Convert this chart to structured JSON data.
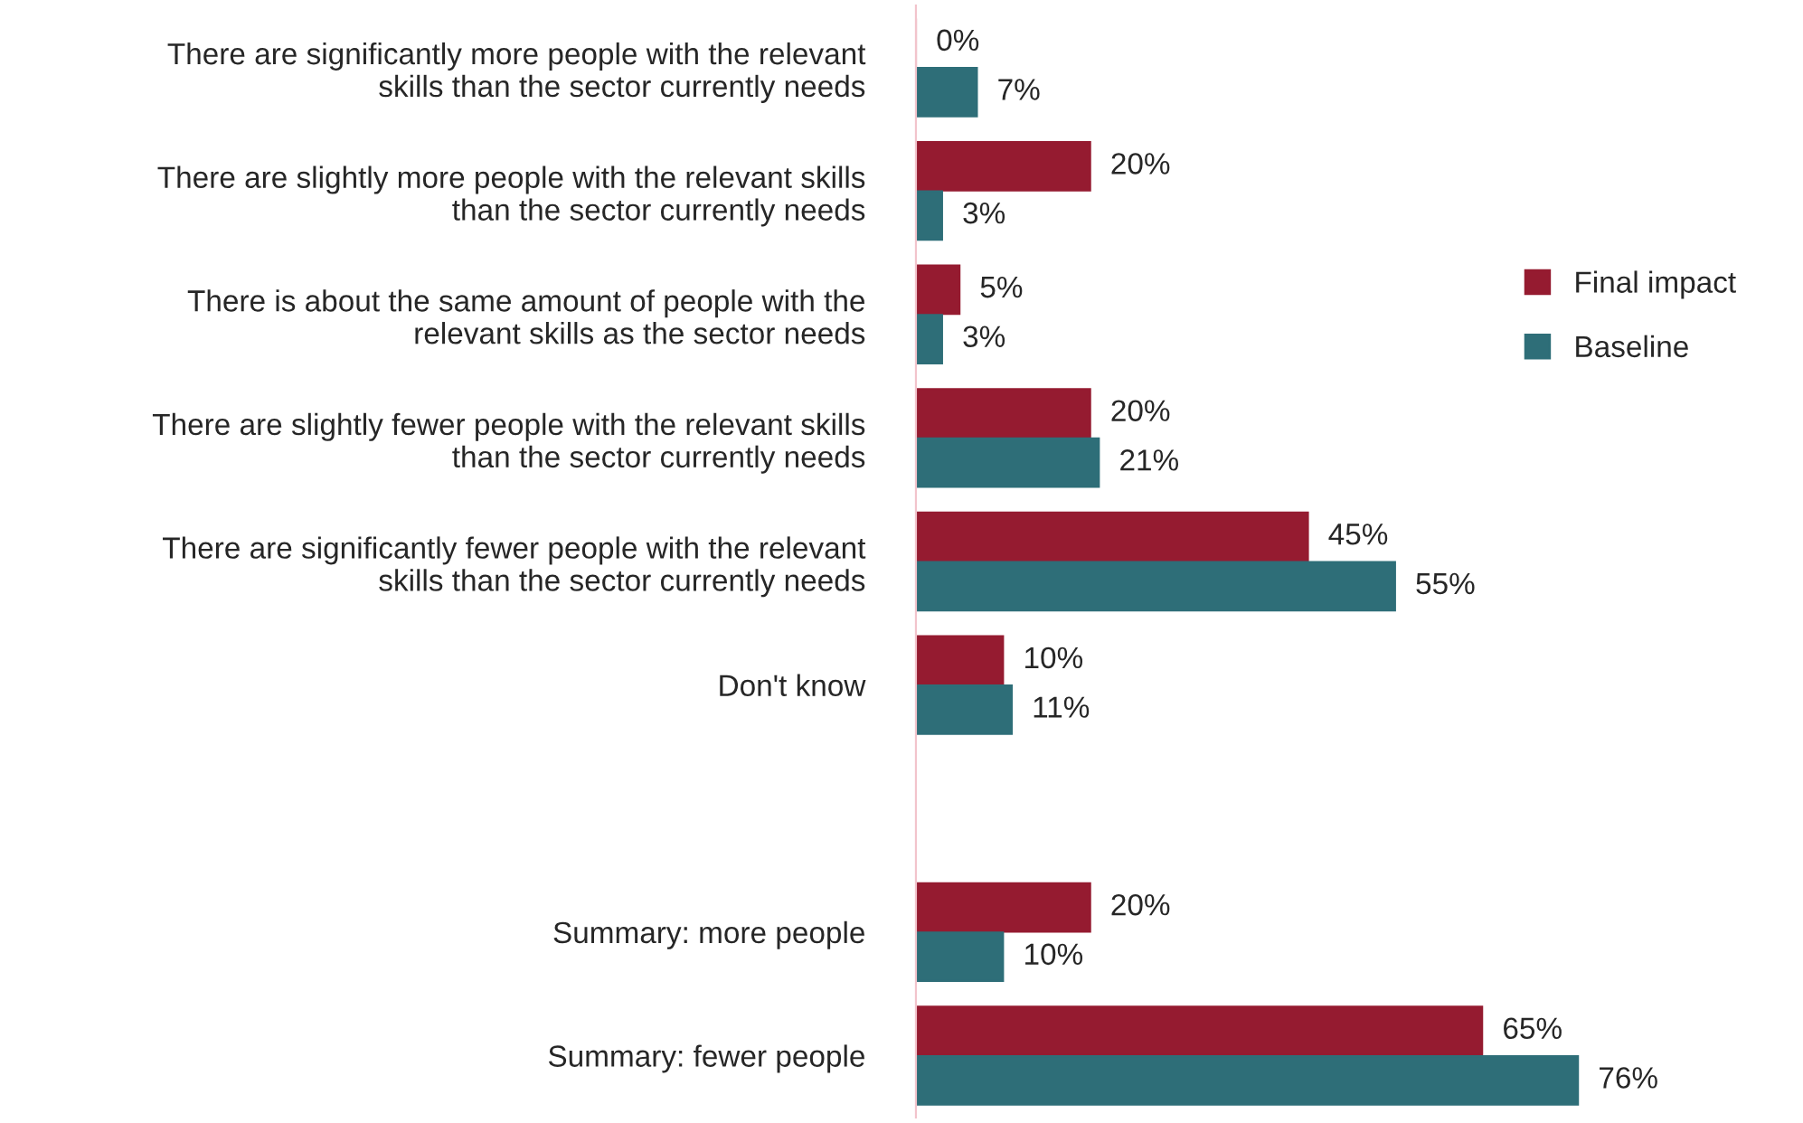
{
  "chart_data": {
    "type": "bar",
    "orientation": "horizontal",
    "legend": "right",
    "categories": [
      "There are significantly more people with the relevant skills than the sector currently needs",
      "There are slightly more people with the relevant skills than the sector currently needs",
      "There is about the same amount of people with the relevant skills as the sector needs",
      "There are slightly fewer people with the relevant skills than the sector currently needs",
      "There are significantly fewer people with the relevant skills than the sector currently needs",
      "Don't know",
      null,
      "Summary: more people",
      "Summary: fewer people"
    ],
    "series": [
      {
        "name": "Final impact",
        "color": "#951b30",
        "values": [
          0,
          20,
          5,
          20,
          45,
          10,
          null,
          20,
          65
        ],
        "value_labels": [
          "0%",
          "20%",
          "5%",
          "20%",
          "45%",
          "10%",
          null,
          "20%",
          "65%"
        ]
      },
      {
        "name": "Baseline",
        "color": "#2e6e78",
        "values": [
          7,
          3,
          3,
          21,
          55,
          11,
          null,
          10,
          76
        ],
        "value_labels": [
          "7%",
          "3%",
          "3%",
          "21%",
          "55%",
          "11%",
          null,
          "10%",
          "76%"
        ]
      }
    ]
  }
}
